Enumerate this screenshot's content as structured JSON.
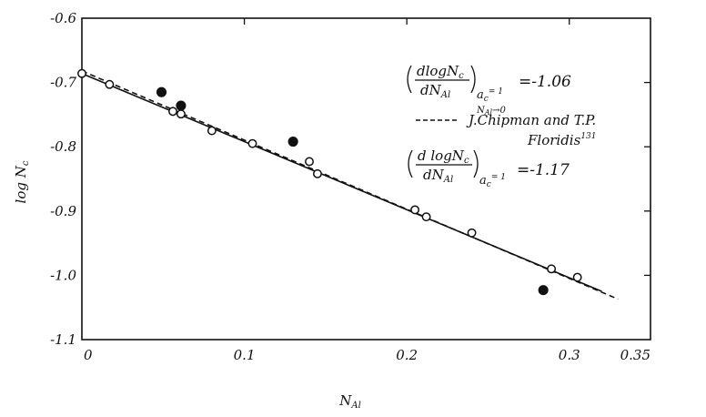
{
  "chart_data": {
    "type": "scatter",
    "xlabel": "N_Al",
    "ylabel": "log N_c",
    "xlim": [
      0,
      0.35
    ],
    "ylim": [
      -1.1,
      -0.6
    ],
    "x_ticks": [
      "0",
      "0.1",
      "0.2",
      "0.3",
      "0.35"
    ],
    "y_ticks": [
      "-0.6",
      "-0.7",
      "-0.8",
      "-0.9",
      "-1.0",
      "-1.1"
    ],
    "grid": false,
    "series": [
      {
        "marker": "open-circle",
        "points": [
          [
            0.0,
            -0.686
          ],
          [
            0.017,
            -0.703
          ],
          [
            0.056,
            -0.745
          ],
          [
            0.061,
            -0.749
          ],
          [
            0.08,
            -0.775
          ],
          [
            0.105,
            -0.795
          ],
          [
            0.14,
            -0.823
          ],
          [
            0.145,
            -0.842
          ],
          [
            0.205,
            -0.898
          ],
          [
            0.212,
            -0.909
          ],
          [
            0.24,
            -0.934
          ],
          [
            0.289,
            -0.99
          ],
          [
            0.305,
            -1.003
          ]
        ]
      },
      {
        "marker": "filled-circle",
        "points": [
          [
            0.049,
            -0.715
          ],
          [
            0.061,
            -0.736
          ],
          [
            0.13,
            -0.792
          ],
          [
            0.284,
            -1.023
          ]
        ]
      }
    ],
    "lines": [
      {
        "style": "solid",
        "from": [
          0.0,
          -0.686
        ],
        "to": [
          0.32,
          -1.025
        ]
      },
      {
        "style": "dashed",
        "from": [
          0.0,
          -0.682
        ],
        "to": [
          0.33,
          -1.037
        ]
      }
    ],
    "annotations": {
      "eq1_num": "dlogN",
      "eq1_num_sub": "c",
      "eq1_den": "dN",
      "eq1_den_sub": "Al",
      "eq1_cond1": "a",
      "eq1_cond1_sub": "c",
      "eq1_cond1_val": "= 1",
      "eq1_cond2": "N",
      "eq1_cond2_sub": "Al",
      "eq1_cond2_val": "→0",
      "eq1_value": "=-1.06",
      "ref_line1": "J.Chipman and T.P.",
      "ref_line2": "Floridis",
      "ref_sup": "131",
      "eq2_num": "d logN",
      "eq2_num_sub": "c",
      "eq2_den": "dN",
      "eq2_den_sub": "Al",
      "eq2_cond": "a",
      "eq2_cond_sub": "c",
      "eq2_cond_val": "= 1",
      "eq2_value": "=-1.17"
    }
  }
}
